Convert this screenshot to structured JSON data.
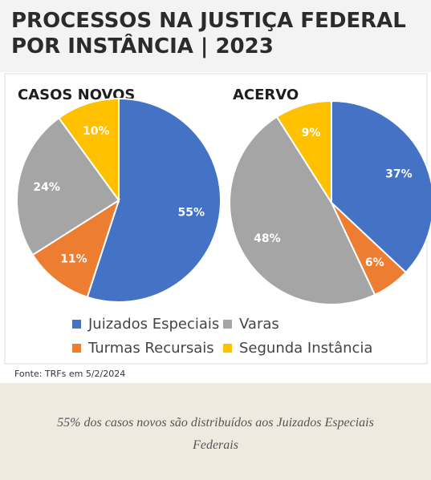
{
  "title": [
    "PROCESSOS NA JUSTIÇA FEDERAL",
    "POR INSTÂNCIA | 2023"
  ],
  "chart_data": [
    {
      "type": "pie",
      "title": "CASOS NOVOS",
      "categories": [
        "Juizados Especiais",
        "Turmas Recursais",
        "Varas",
        "Segunda Instância"
      ],
      "values": [
        55,
        11,
        24,
        10
      ],
      "value_labels": [
        "55%",
        "11%",
        "24%",
        "10%"
      ],
      "colors": [
        "#4472c4",
        "#ed7d31",
        "#a5a5a5",
        "#ffc000"
      ]
    },
    {
      "type": "pie",
      "title": "ACERVO",
      "categories": [
        "Juizados Especiais",
        "Turmas Recursais",
        "Varas",
        "Segunda Instância"
      ],
      "values": [
        37,
        6,
        48,
        9
      ],
      "value_labels": [
        "37%",
        "6%",
        "48%",
        "9%"
      ],
      "colors": [
        "#4472c4",
        "#ed7d31",
        "#a5a5a5",
        "#ffc000"
      ]
    }
  ],
  "source": "Fonte: TRFs em 5/2/2024",
  "caption": "55% dos casos novos são distribuídos aos Juizados Especiais Federais"
}
